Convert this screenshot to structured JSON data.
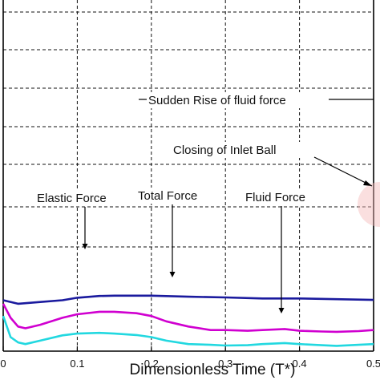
{
  "chart_data": {
    "type": "line",
    "title": "",
    "xlabel": "Dimensionless Time (T*)",
    "ylabel": "",
    "xlim": [
      0,
      0.5
    ],
    "ylim": [
      0,
      1
    ],
    "grid": true,
    "x_ticks": [
      0,
      0.1,
      0.2,
      0.3,
      0.4,
      0.5
    ],
    "x_tick_labels": [
      "0",
      "0.1",
      "0.2",
      "0.3",
      "0.4",
      "0.5"
    ],
    "series": [
      {
        "name": "Elastic Force",
        "color": "#1a1a9e",
        "x": [
          0,
          0.02,
          0.05,
          0.08,
          0.1,
          0.13,
          0.15,
          0.2,
          0.25,
          0.3,
          0.35,
          0.4,
          0.45,
          0.5
        ],
        "y": [
          0.145,
          0.135,
          0.14,
          0.145,
          0.152,
          0.157,
          0.158,
          0.158,
          0.155,
          0.153,
          0.15,
          0.15,
          0.148,
          0.146
        ]
      },
      {
        "name": "Total Force",
        "color": "#d000d0",
        "x": [
          0,
          0.01,
          0.02,
          0.03,
          0.05,
          0.08,
          0.1,
          0.13,
          0.15,
          0.18,
          0.2,
          0.22,
          0.25,
          0.28,
          0.3,
          0.33,
          0.35,
          0.38,
          0.4,
          0.43,
          0.45,
          0.48,
          0.5
        ],
        "y": [
          0.135,
          0.095,
          0.07,
          0.065,
          0.075,
          0.095,
          0.105,
          0.112,
          0.112,
          0.108,
          0.1,
          0.085,
          0.07,
          0.06,
          0.06,
          0.058,
          0.06,
          0.063,
          0.058,
          0.056,
          0.055,
          0.057,
          0.06
        ]
      },
      {
        "name": "Fluid Force",
        "color": "#22d8e0",
        "x": [
          0,
          0.01,
          0.02,
          0.03,
          0.05,
          0.08,
          0.1,
          0.13,
          0.15,
          0.18,
          0.2,
          0.22,
          0.25,
          0.28,
          0.3,
          0.33,
          0.35,
          0.38,
          0.4,
          0.43,
          0.45,
          0.48,
          0.5
        ],
        "y": [
          0.1,
          0.04,
          0.025,
          0.02,
          0.03,
          0.045,
          0.05,
          0.052,
          0.05,
          0.046,
          0.04,
          0.03,
          0.02,
          0.018,
          0.016,
          0.017,
          0.02,
          0.023,
          0.02,
          0.017,
          0.015,
          0.018,
          0.02
        ]
      }
    ],
    "annotations": [
      {
        "text": "Sudden Rise of fluid force"
      },
      {
        "text": "Closing of Inlet Ball"
      },
      {
        "text": "Elastic Force"
      },
      {
        "text": "Total Force"
      },
      {
        "text": "Fluid Force"
      }
    ]
  }
}
